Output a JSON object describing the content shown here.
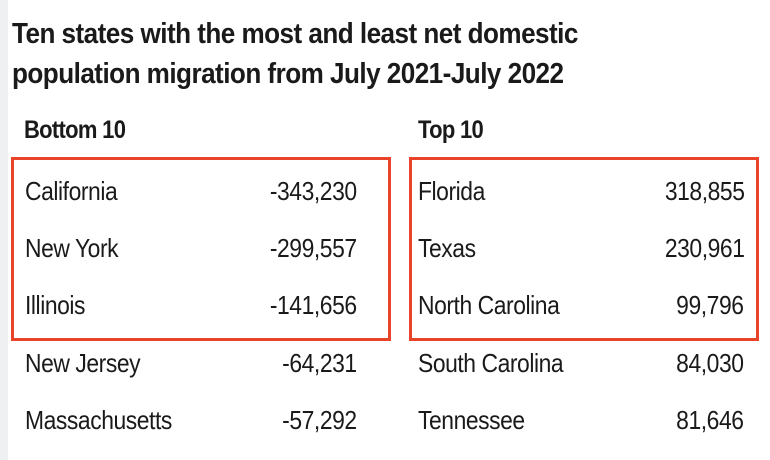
{
  "title_lines": [
    "Ten states with the most and least net domestic",
    "population migration from July 2021-July 2022"
  ],
  "colors": {
    "highlight_box": "#e8442a",
    "text": "#1a1a1a"
  },
  "bottom": {
    "heading": "Bottom 10",
    "rows": [
      {
        "state": "California",
        "value": "-343,230"
      },
      {
        "state": "New York",
        "value": "-299,557"
      },
      {
        "state": "Illinois",
        "value": "-141,656"
      },
      {
        "state": "New Jersey",
        "value": "-64,231"
      },
      {
        "state": "Massachusetts",
        "value": "-57,292"
      }
    ]
  },
  "top": {
    "heading": "Top 10",
    "rows": [
      {
        "state": "Florida",
        "value": "318,855"
      },
      {
        "state": "Texas",
        "value": "230,961"
      },
      {
        "state": "North Carolina",
        "value": "99,796"
      },
      {
        "state": "South Carolina",
        "value": "84,030"
      },
      {
        "state": "Tennessee",
        "value": "81,646"
      }
    ]
  },
  "chart_data": {
    "type": "table",
    "title": "Ten states with the most and least net domestic population migration from July 2021-July 2022",
    "tables": [
      {
        "name": "Bottom 10",
        "states": [
          "California",
          "New York",
          "Illinois",
          "New Jersey",
          "Massachusetts"
        ],
        "values": [
          -343230,
          -299557,
          -141656,
          -64231,
          -57292
        ],
        "highlighted": [
          0,
          1,
          2
        ]
      },
      {
        "name": "Top 10",
        "states": [
          "Florida",
          "Texas",
          "North Carolina",
          "South Carolina",
          "Tennessee"
        ],
        "values": [
          318855,
          230961,
          99796,
          84030,
          81646
        ],
        "highlighted": [
          0,
          1,
          2
        ]
      }
    ]
  }
}
